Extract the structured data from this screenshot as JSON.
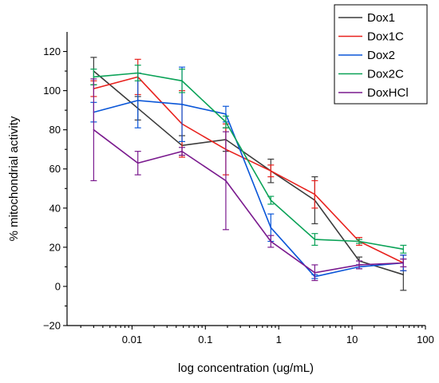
{
  "chart_data": {
    "type": "line",
    "title": "",
    "xlabel": "log concentration (ug/mL)",
    "ylabel": "% mitochondrial activity",
    "xscale": "log",
    "xlim": [
      0.0013,
      100
    ],
    "ylim": [
      -20,
      130
    ],
    "x_ticks": [
      0.01,
      0.1,
      1,
      10,
      100
    ],
    "x_tick_labels": [
      "0.01",
      "0.1",
      "1",
      "10",
      "100"
    ],
    "y_ticks": [
      -20,
      0,
      20,
      40,
      60,
      80,
      100,
      120
    ],
    "y_tick_labels": [
      "−20",
      "0",
      "20",
      "40",
      "60",
      "80",
      "100",
      "120"
    ],
    "grid": false,
    "legend_position": "top-right",
    "x": [
      0.003,
      0.012,
      0.048,
      0.19,
      0.78,
      3.1,
      12.5,
      50
    ],
    "series": [
      {
        "name": "Dox1",
        "color": "#3b3b3b",
        "values": [
          110,
          91,
          72,
          75,
          59,
          44,
          13,
          6
        ],
        "errors": [
          7,
          6,
          5,
          6,
          6,
          12,
          2,
          8
        ]
      },
      {
        "name": "Dox1C",
        "color": "#e8211d",
        "values": [
          101,
          107,
          83,
          70,
          59,
          47,
          23,
          12
        ],
        "errors": [
          4,
          9,
          17,
          13,
          3,
          7,
          2,
          4
        ]
      },
      {
        "name": "Dox2",
        "color": "#0a56d8",
        "values": [
          89,
          95,
          93,
          88,
          30,
          5,
          10,
          12
        ],
        "errors": [
          5,
          14,
          19,
          4,
          7,
          1,
          1,
          4
        ]
      },
      {
        "name": "Dox2C",
        "color": "#0aa257",
        "values": [
          107,
          109,
          105,
          84,
          44,
          24,
          23,
          19
        ],
        "errors": [
          4,
          4,
          6,
          3,
          2,
          3,
          1,
          2
        ]
      },
      {
        "name": "DoxHCl",
        "color": "#7a1a8e",
        "values": [
          80,
          63,
          69,
          54,
          23,
          7,
          11,
          12
        ],
        "errors": [
          26,
          6,
          2,
          25,
          3,
          4,
          2,
          2
        ]
      }
    ]
  }
}
